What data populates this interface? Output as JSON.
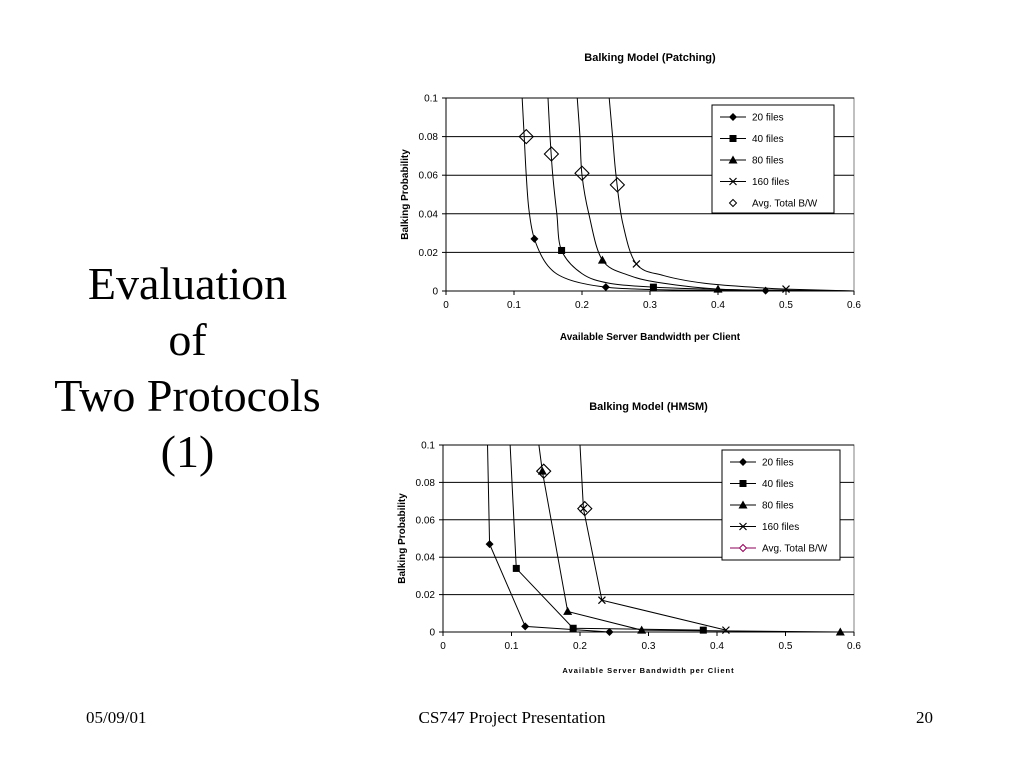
{
  "slide": {
    "title_lines": [
      "Evaluation",
      "of",
      "Two Protocols",
      "(1)"
    ],
    "footer": {
      "date": "05/09/01",
      "center": "CS747 Project Presentation",
      "page": "20"
    }
  },
  "chart_data": [
    {
      "type": "line",
      "title": "Balking Model (Patching)",
      "xlabel": "Available Server Bandwidth per Client",
      "ylabel": "Balking Probability",
      "xlim": [
        0,
        0.6
      ],
      "ylim": [
        0,
        0.1
      ],
      "xticks": [
        "0",
        "0.1",
        "0.2",
        "0.3",
        "0.4",
        "0.5",
        "0.6"
      ],
      "yticks": [
        "0",
        "0.02",
        "0.04",
        "0.06",
        "0.08",
        "0.1"
      ],
      "grid": "horizontal",
      "legend": "top-right",
      "series": [
        {
          "name": "20 files",
          "marker": "diamond",
          "points": [
            [
              0.13,
              0.027
            ],
            [
              0.235,
              0.002
            ],
            [
              0.47,
              0.0002
            ]
          ],
          "curve": [
            [
              0.112,
              0.1
            ],
            [
              0.115,
              0.08
            ],
            [
              0.118,
              0.06
            ],
            [
              0.122,
              0.042
            ],
            [
              0.13,
              0.027
            ],
            [
              0.15,
              0.013
            ],
            [
              0.18,
              0.006
            ],
            [
              0.235,
              0.002
            ],
            [
              0.3,
              0.0008
            ],
            [
              0.4,
              0.0003
            ],
            [
              0.47,
              0.0002
            ],
            [
              0.6,
              0.0
            ]
          ]
        },
        {
          "name": "40 files",
          "marker": "square",
          "points": [
            [
              0.17,
              0.021
            ],
            [
              0.305,
              0.002
            ]
          ],
          "curve": [
            [
              0.15,
              0.1
            ],
            [
              0.153,
              0.08
            ],
            [
              0.157,
              0.06
            ],
            [
              0.163,
              0.04
            ],
            [
              0.17,
              0.021
            ],
            [
              0.2,
              0.009
            ],
            [
              0.24,
              0.004
            ],
            [
              0.305,
              0.002
            ],
            [
              0.4,
              0.0008
            ],
            [
              0.5,
              0.0003
            ],
            [
              0.6,
              0.0
            ]
          ]
        },
        {
          "name": "80 files",
          "marker": "triangle",
          "points": [
            [
              0.23,
              0.016
            ],
            [
              0.4,
              0.001
            ]
          ],
          "curve": [
            [
              0.193,
              0.1
            ],
            [
              0.197,
              0.08
            ],
            [
              0.2,
              0.06
            ],
            [
              0.21,
              0.04
            ],
            [
              0.23,
              0.016
            ],
            [
              0.27,
              0.008
            ],
            [
              0.32,
              0.004
            ],
            [
              0.4,
              0.001
            ],
            [
              0.5,
              0.0004
            ],
            [
              0.6,
              0.0
            ]
          ]
        },
        {
          "name": "160 files",
          "marker": "x",
          "points": [
            [
              0.28,
              0.014
            ],
            [
              0.5,
              0.001
            ]
          ],
          "curve": [
            [
              0.24,
              0.1
            ],
            [
              0.245,
              0.08
            ],
            [
              0.25,
              0.06
            ],
            [
              0.26,
              0.035
            ],
            [
              0.28,
              0.014
            ],
            [
              0.32,
              0.008
            ],
            [
              0.38,
              0.004
            ],
            [
              0.45,
              0.002
            ],
            [
              0.5,
              0.001
            ],
            [
              0.6,
              0.0
            ]
          ]
        },
        {
          "name": "Avg. Total B/W",
          "marker": "open-diamond",
          "points": [
            [
              0.118,
              0.08
            ],
            [
              0.155,
              0.071
            ],
            [
              0.2,
              0.061
            ],
            [
              0.252,
              0.055
            ]
          ],
          "curve": []
        }
      ]
    },
    {
      "type": "line",
      "title": "Balking Model (HMSM)",
      "xlabel": "Available Server Bandwidth per Client",
      "ylabel": "Balking Probability",
      "xlim": [
        0,
        0.6
      ],
      "ylim": [
        0,
        0.1
      ],
      "xticks": [
        "0",
        "0.1",
        "0.2",
        "0.3",
        "0.4",
        "0.5",
        "0.6"
      ],
      "yticks": [
        "0",
        "0.02",
        "0.04",
        "0.06",
        "0.08",
        "0.1"
      ],
      "grid": "horizontal",
      "legend": "top-right",
      "series": [
        {
          "name": "20 files",
          "marker": "diamond",
          "points": [
            [
              0.068,
              0.047
            ],
            [
              0.12,
              0.003
            ],
            [
              0.243,
              0.0
            ]
          ],
          "curve": [
            [
              0.065,
              0.1
            ],
            [
              0.068,
              0.047
            ],
            [
              0.12,
              0.003
            ],
            [
              0.243,
              0.0
            ]
          ]
        },
        {
          "name": "40 files",
          "marker": "square",
          "points": [
            [
              0.107,
              0.034
            ],
            [
              0.19,
              0.002
            ],
            [
              0.38,
              0.001
            ]
          ],
          "curve": [
            [
              0.098,
              0.1
            ],
            [
              0.107,
              0.034
            ],
            [
              0.19,
              0.002
            ],
            [
              0.38,
              0.001
            ]
          ]
        },
        {
          "name": "80 files",
          "marker": "triangle",
          "points": [
            [
              0.145,
              0.086
            ],
            [
              0.182,
              0.011
            ],
            [
              0.29,
              0.001
            ],
            [
              0.58,
              0.0
            ]
          ],
          "curve": [
            [
              0.14,
              0.1
            ],
            [
              0.145,
              0.086
            ],
            [
              0.182,
              0.011
            ],
            [
              0.29,
              0.001
            ],
            [
              0.58,
              0.0
            ]
          ]
        },
        {
          "name": "160 files",
          "marker": "x",
          "points": [
            [
              0.205,
              0.066
            ],
            [
              0.232,
              0.017
            ],
            [
              0.413,
              0.001
            ]
          ],
          "curve": [
            [
              0.2,
              0.1
            ],
            [
              0.205,
              0.066
            ],
            [
              0.232,
              0.017
            ],
            [
              0.413,
              0.001
            ]
          ]
        },
        {
          "name": "Avg. Total B/W",
          "marker": "open-diamond",
          "points": [
            [
              0.147,
              0.086
            ],
            [
              0.207,
              0.066
            ]
          ],
          "curve": []
        }
      ]
    }
  ]
}
